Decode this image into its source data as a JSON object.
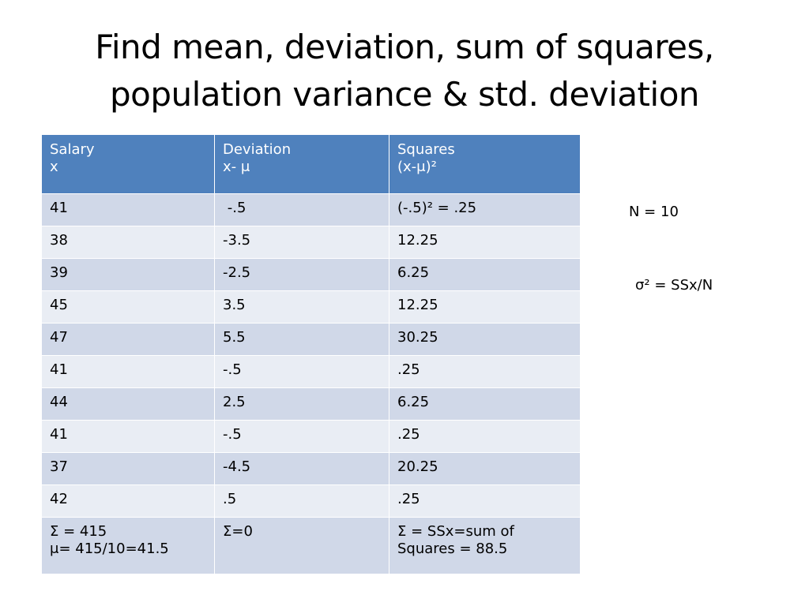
{
  "title": {
    "line1": "Find mean, deviation, sum of squares,",
    "line2": "population variance & std. deviation"
  },
  "table": {
    "headers": [
      {
        "line1": "Salary",
        "line2": "x"
      },
      {
        "line1": "Deviation",
        "line2": "x- μ"
      },
      {
        "line1": "Squares",
        "line2": "(x-μ)²"
      }
    ],
    "rows": [
      [
        "41",
        " -.5",
        "(-.5)² = .25"
      ],
      [
        "38",
        "-3.5",
        "12.25"
      ],
      [
        "39",
        "-2.5",
        "6.25"
      ],
      [
        "45",
        "3.5",
        "12.25"
      ],
      [
        "47",
        "5.5",
        "30.25"
      ],
      [
        "41",
        "-.5",
        ".25"
      ],
      [
        "44",
        "2.5",
        "6.25"
      ],
      [
        "41",
        "-.5",
        ".25"
      ],
      [
        "37",
        "-4.5",
        "20.25"
      ],
      [
        "42",
        ".5",
        ".25"
      ]
    ],
    "totals": [
      {
        "line1": "Σ = 415",
        "line2": "μ= 415/10=41.5"
      },
      {
        "line1": "Σ=0",
        "line2": ""
      },
      {
        "line1": "Σ = SSx=sum of",
        "line2": "Squares = 88.5"
      }
    ]
  },
  "notes": {
    "n": "N = 10",
    "variance": "σ² = SSx/N"
  },
  "colors": {
    "header_bg": "#4f81bd",
    "row_odd_bg": "#d0d8e8",
    "row_even_bg": "#e9edf4"
  }
}
